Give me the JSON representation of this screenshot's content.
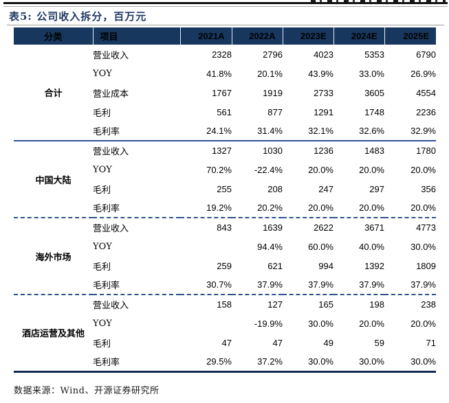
{
  "title": "表5: 公司收入拆分，百万元",
  "table": {
    "headers": [
      "分类",
      "项目",
      "2021A",
      "2022A",
      "2023E",
      "2024E",
      "2025E"
    ],
    "sections": [
      {
        "category": "合计",
        "rows": [
          {
            "item": "营业收入",
            "values": [
              "2328",
              "2796",
              "4023",
              "5353",
              "6790"
            ]
          },
          {
            "item": "YOY",
            "values": [
              "41.8%",
              "20.1%",
              "43.9%",
              "33.0%",
              "26.9%"
            ]
          },
          {
            "item": "营业成本",
            "values": [
              "1767",
              "1919",
              "2733",
              "3605",
              "4554"
            ]
          },
          {
            "item": "毛利",
            "values": [
              "561",
              "877",
              "1291",
              "1748",
              "2236"
            ]
          },
          {
            "item": "毛利率",
            "values": [
              "24.1%",
              "31.4%",
              "32.1%",
              "32.6%",
              "32.9%"
            ]
          }
        ],
        "divider_after": "solid"
      },
      {
        "category": "中国大陆",
        "rows": [
          {
            "item": "营业收入",
            "values": [
              "1327",
              "1030",
              "1236",
              "1483",
              "1780"
            ]
          },
          {
            "item": "YOY",
            "values": [
              "70.2%",
              "-22.4%",
              "20.0%",
              "20.0%",
              "20.0%"
            ]
          },
          {
            "item": "毛利",
            "values": [
              "255",
              "208",
              "247",
              "297",
              "356"
            ]
          },
          {
            "item": "毛利率",
            "values": [
              "19.2%",
              "20.2%",
              "20.0%",
              "20.0%",
              "20.0%"
            ]
          }
        ],
        "divider_after": "dashed"
      },
      {
        "category": "海外市场",
        "rows": [
          {
            "item": "营业收入",
            "values": [
              "843",
              "1639",
              "2622",
              "3671",
              "4773"
            ]
          },
          {
            "item": "YOY",
            "values": [
              "",
              "94.4%",
              "60.0%",
              "40.0%",
              "30.0%"
            ]
          },
          {
            "item": "毛利",
            "values": [
              "259",
              "621",
              "994",
              "1392",
              "1809"
            ]
          },
          {
            "item": "毛利率",
            "values": [
              "30.7%",
              "37.9%",
              "37.9%",
              "37.9%",
              "37.9%"
            ]
          }
        ],
        "divider_after": "dashed"
      },
      {
        "category": "酒店运营及其他",
        "rows": [
          {
            "item": "营业收入",
            "values": [
              "158",
              "127",
              "165",
              "198",
              "238"
            ]
          },
          {
            "item": "YOY",
            "values": [
              "",
              "-19.9%",
              "30.0%",
              "20.0%",
              "20.0%"
            ]
          },
          {
            "item": "毛利",
            "values": [
              "47",
              "47",
              "49",
              "59",
              "71"
            ]
          },
          {
            "item": "毛利率",
            "values": [
              "29.5%",
              "37.2%",
              "30.0%",
              "30.0%",
              "30.0%"
            ]
          }
        ],
        "divider_after": "none"
      }
    ]
  },
  "footer": {
    "source": "数据来源：Wind、开源证券研究所"
  },
  "colors": {
    "header_bg": "#17375E",
    "title_text": "#1F3864",
    "section_divider": "#2B5291",
    "bottom_rule": "#12294F",
    "top_rule": "#111111"
  }
}
